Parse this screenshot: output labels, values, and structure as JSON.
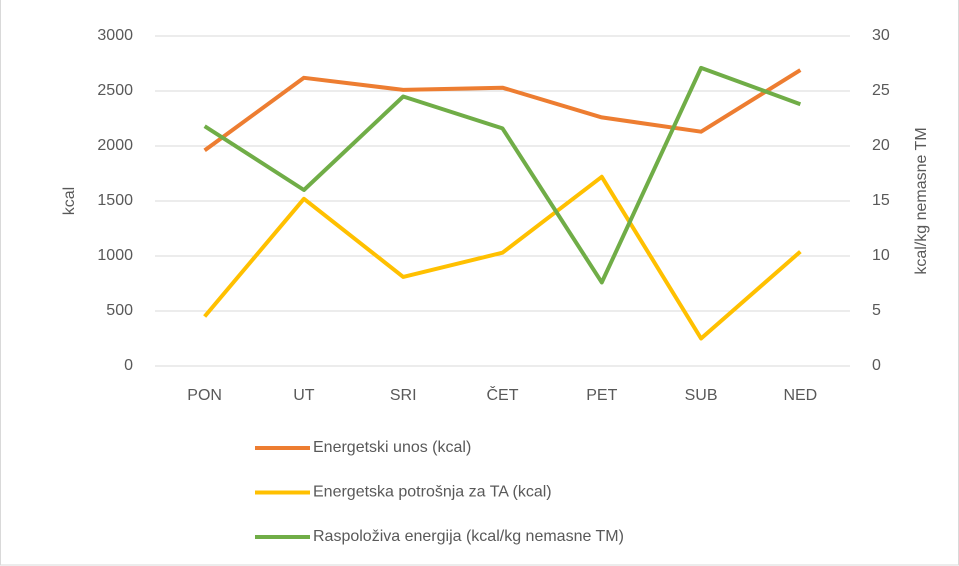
{
  "chart_data": {
    "type": "line",
    "categories": [
      "PON",
      "UT",
      "SRI",
      "ČET",
      "PET",
      "SUB",
      "NED"
    ],
    "y_label": "kcal",
    "y2_label": "kcal/kg nemasne TM",
    "ylim": [
      0,
      3000
    ],
    "yticks": [
      0,
      500,
      1000,
      1500,
      2000,
      2500,
      3000
    ],
    "y2lim": [
      0,
      30
    ],
    "y2ticks": [
      0,
      5,
      10,
      15,
      20,
      25,
      30
    ],
    "grid": true,
    "legend": "bottom",
    "series": [
      {
        "name": "Energetski unos (kcal)",
        "color": "#ed7d31",
        "values": [
          1960,
          2620,
          2510,
          2530,
          2260,
          2130,
          2690
        ]
      },
      {
        "name": "Energetska potrošnja za TA (kcal)",
        "color": "#ffc000",
        "values": [
          450,
          1520,
          810,
          1030,
          1720,
          250,
          1040
        ]
      },
      {
        "name": "Raspoloživa energija (kcal/kg nemasne TM)",
        "color": "#70ad47",
        "axis": "y2",
        "values": [
          21.8,
          16.0,
          24.5,
          21.6,
          7.6,
          27.1,
          23.8
        ]
      }
    ]
  }
}
